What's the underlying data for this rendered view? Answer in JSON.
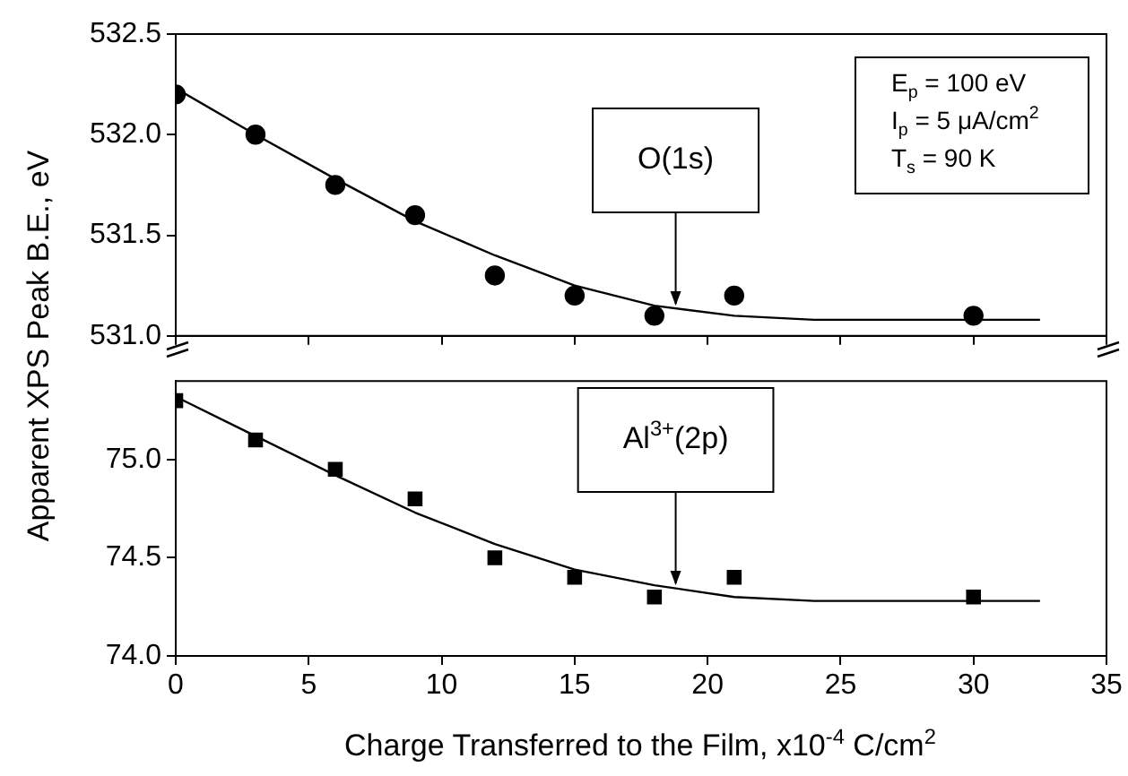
{
  "chart_data": [
    {
      "type": "scatter",
      "xlim": [
        0,
        35
      ],
      "xticks": [
        0,
        5,
        10,
        15,
        20,
        25,
        30,
        35
      ],
      "ylim": [
        531.0,
        532.5
      ],
      "yticks": [
        {
          "value": 531.0,
          "label": "531.0"
        },
        {
          "value": 531.5,
          "label": "531.5"
        },
        {
          "value": 532.0,
          "label": "532.0"
        },
        {
          "value": 532.5,
          "label": "532.5"
        }
      ],
      "tick_labels": "y",
      "grid": false,
      "legend": false,
      "series": [
        {
          "type": "scatter",
          "marker": "circle",
          "color": "#000000",
          "x": [
            0,
            3,
            6,
            9,
            12,
            15,
            18,
            21,
            30
          ],
          "values": [
            532.2,
            532.0,
            531.75,
            531.6,
            531.3,
            531.2,
            531.1,
            531.2,
            531.1
          ]
        },
        {
          "type": "line",
          "marker": "none",
          "color": "#000000",
          "x": [
            0,
            3,
            6,
            9,
            12,
            15,
            18,
            21,
            24,
            27,
            32.5
          ],
          "values": [
            532.23,
            532.0,
            531.78,
            531.57,
            531.4,
            531.25,
            531.15,
            531.1,
            531.08,
            531.08,
            531.08
          ]
        }
      ],
      "annotations": [
        {
          "text": "O(1s)",
          "x": 18.8,
          "y": 531.15
        },
        "E$_{p}$ = 100 eV",
        "I$_{p}$ = 5 μA/cm$^{2}$",
        "T$_{s}$ = 90 K"
      ]
    },
    {
      "type": "scatter",
      "xlim": [
        0,
        35
      ],
      "xticks": [
        0,
        5,
        10,
        15,
        20,
        25,
        30,
        35
      ],
      "ylim": [
        74.0,
        75.4
      ],
      "yticks": [
        {
          "value": 74.0,
          "label": "74.0"
        },
        {
          "value": 74.5,
          "label": "74.5"
        },
        {
          "value": 75.0,
          "label": "75.0"
        }
      ],
      "grid": false,
      "legend": false,
      "xlabel": "Charge Transferred to the Film, x10$^{-4}$ C/cm$^{2}$",
      "ylabel": "Apparent XPS Peak B.E., eV",
      "series": [
        {
          "type": "scatter",
          "marker": "square",
          "color": "#000000",
          "x": [
            0,
            3,
            6,
            9,
            12,
            15,
            18,
            21,
            30
          ],
          "values": [
            75.3,
            75.1,
            74.95,
            74.8,
            74.5,
            74.4,
            74.3,
            74.4,
            74.3
          ]
        },
        {
          "type": "line",
          "marker": "none",
          "color": "#000000",
          "x": [
            0,
            3,
            6,
            9,
            12,
            15,
            18,
            21,
            24,
            27,
            32.5
          ],
          "values": [
            75.32,
            75.12,
            74.92,
            74.73,
            74.57,
            74.44,
            74.36,
            74.3,
            74.28,
            74.28,
            74.28
          ]
        }
      ],
      "annotations": [
        {
          "text": "Al$^{3+}$(2p)",
          "x": 18.8,
          "y": 74.36
        }
      ]
    }
  ]
}
